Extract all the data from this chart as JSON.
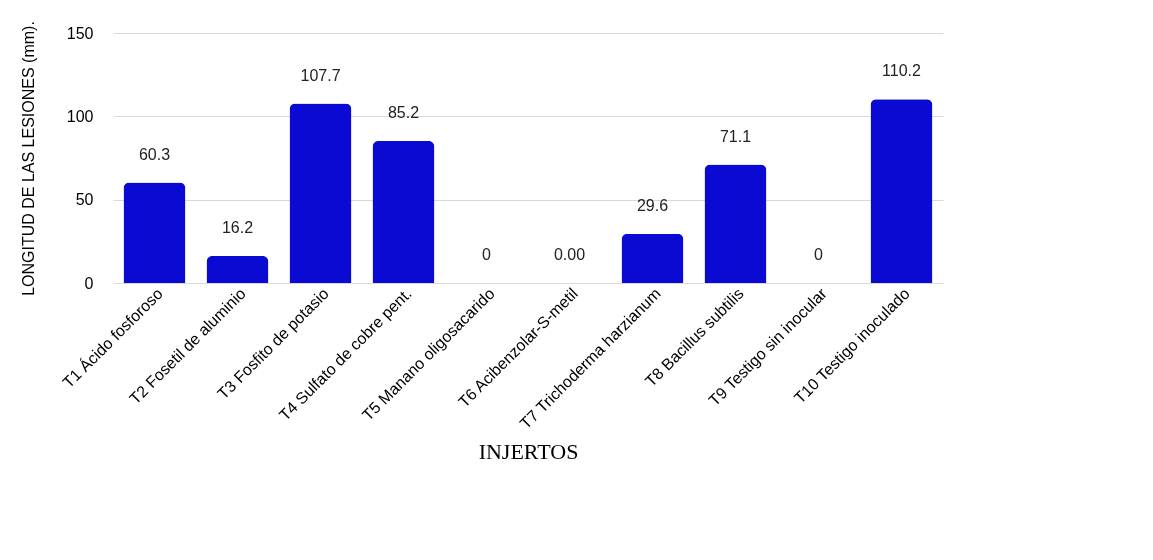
{
  "chart_data": {
    "type": "bar",
    "xlabel": "INJERTOS",
    "ylabel": "LONGITUD DE LAS LESIONES (mm).",
    "categories": [
      "T1 Ácido fosforoso",
      "T2 Fosetil de aluminio",
      "T3 Fosfito de potasio",
      "T4 Sulfato de cobre pent.",
      "T5 Manano oligosacarido",
      "T6 Acibenzolar-S-metil",
      "T7 Trichoderma harzianum",
      "T8 Bacillus subtilis",
      "T9 Testigo sin inocular",
      "T10 Testigo inoculado"
    ],
    "values": [
      60.3,
      16.2,
      107.7,
      85.2,
      0,
      0,
      29.6,
      71.1,
      0,
      110.2
    ],
    "value_labels": [
      "60.3",
      "16.2",
      "107.7",
      "85.2",
      "0",
      "0.00",
      "29.6",
      "71.1",
      "0",
      "110.2"
    ],
    "color": "#0a0ad2",
    "ylim": [
      0,
      150
    ],
    "yticks": [
      0,
      50,
      100,
      150
    ],
    "grid": "y"
  }
}
